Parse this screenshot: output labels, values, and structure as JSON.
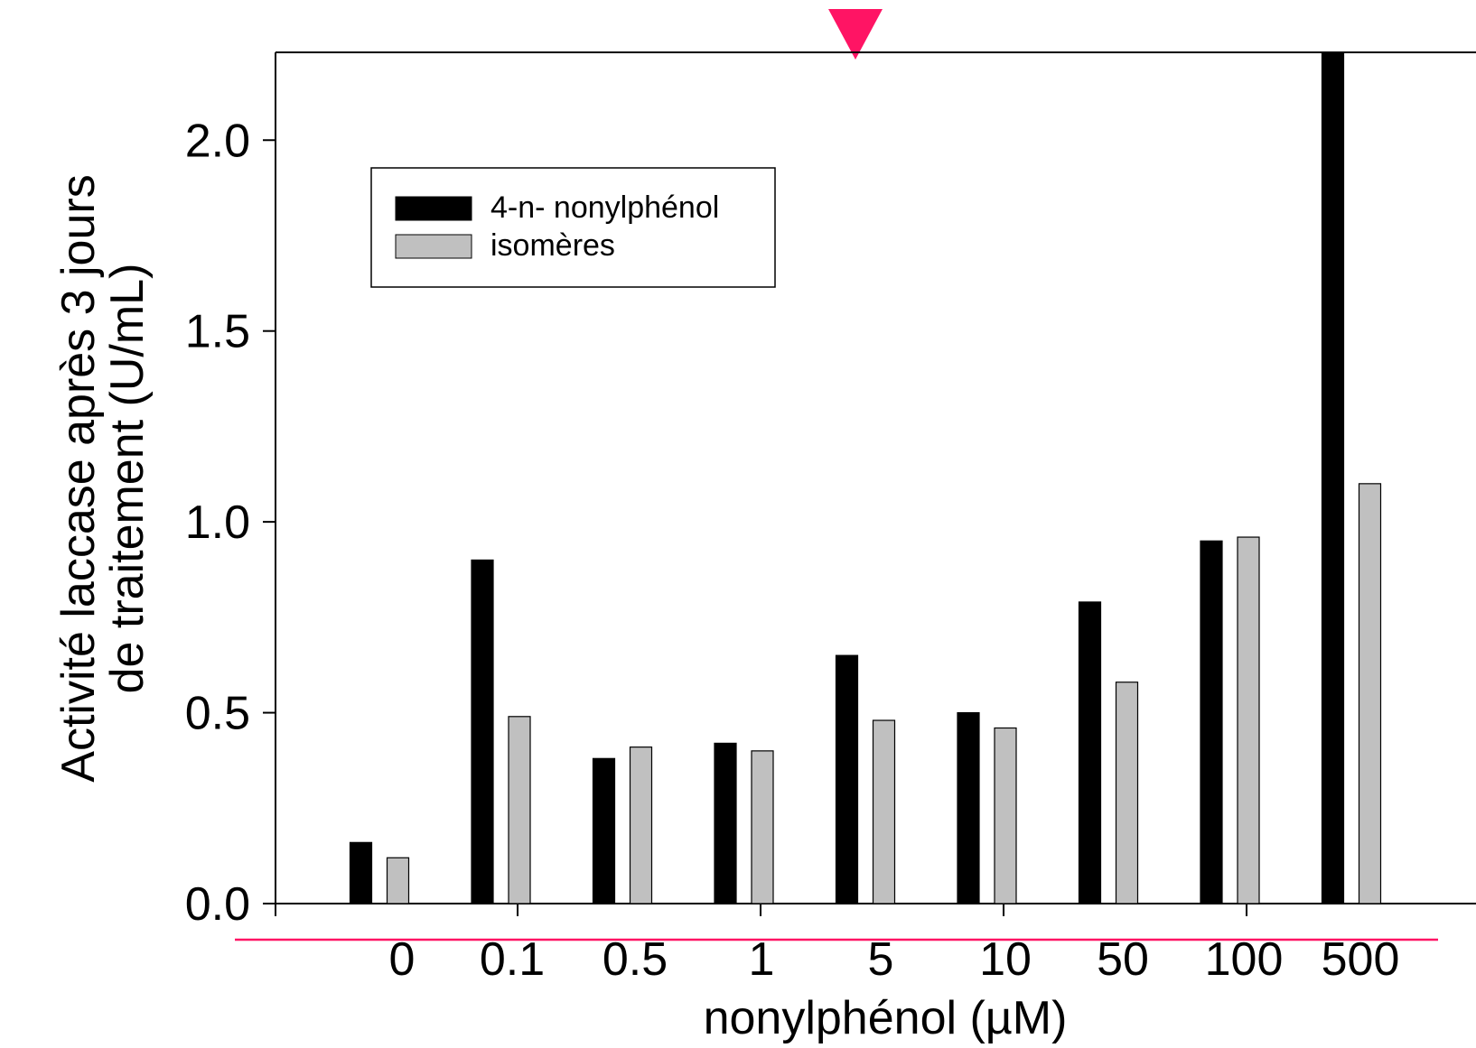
{
  "chart_data": {
    "type": "bar",
    "xlabel": "nonylphénol (µM)",
    "ylabel_lines": [
      "Activité laccase après 3 jours",
      "de traitement (U/mL)"
    ],
    "categories": [
      "0",
      "0.1",
      "0.5",
      "1",
      "5",
      "10",
      "50",
      "100",
      "500"
    ],
    "series": [
      {
        "name": "4-n- nonylphénol",
        "color": "#000000",
        "values": [
          0.16,
          0.9,
          0.38,
          0.42,
          0.65,
          0.5,
          0.79,
          0.95,
          2.23
        ]
      },
      {
        "name": "isomères",
        "color": "#c0c0c0",
        "values": [
          0.12,
          0.49,
          0.41,
          0.4,
          0.48,
          0.46,
          0.58,
          0.96,
          1.1
        ]
      }
    ],
    "ylim": [
      0,
      2.23
    ],
    "yticks": [
      "0.0",
      "0.5",
      "1.0",
      "1.5",
      "2.0"
    ],
    "legend_position": "top-left",
    "grid": false,
    "annotation_color": "#ff1464"
  }
}
